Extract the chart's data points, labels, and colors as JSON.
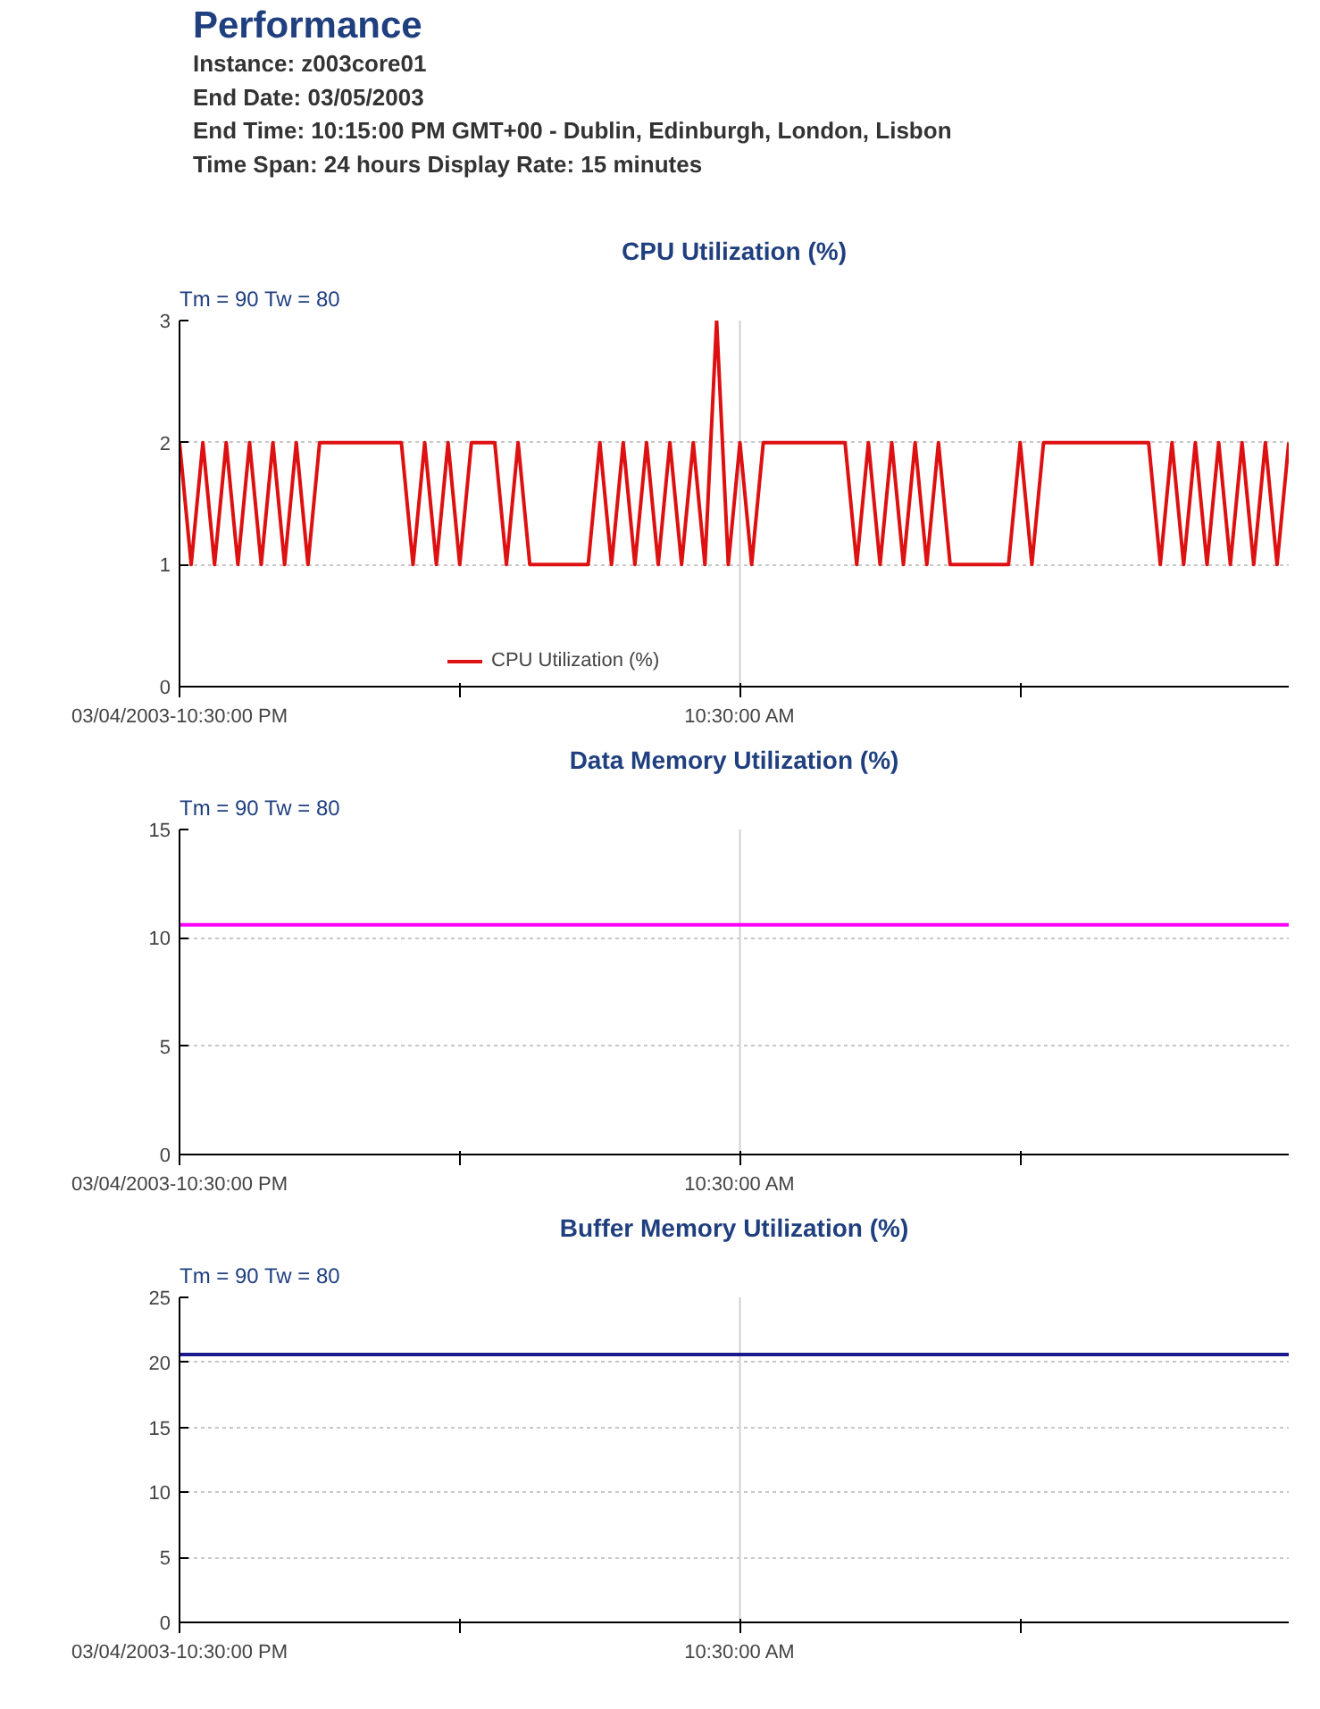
{
  "chart_data": [
    {
      "type": "other",
      "title": "Performance",
      "annotations": [
        "Instance: z003core01",
        "End Date: 03/05/2003",
        "End Time: 10:15:00 PM GMT+00 - Dublin, Edinburgh, London, Lisbon",
        "Time Span: 24 hours  Display Rate: 15 minutes"
      ]
    },
    {
      "type": "line",
      "title": "CPU Utilization (%)",
      "annotations": [
        "Tm = 90  Tw = 80"
      ],
      "xlim": [
        "2003-03-04T22:30",
        "2003-03-05T22:15"
      ],
      "ylim": [
        0,
        3
      ],
      "yticks": [
        0,
        1,
        2,
        3
      ],
      "xticks": [
        {
          "value": "2003-03-04T22:30",
          "label": "03/04/2003-10:30:00 PM"
        },
        {
          "value": "2003-03-05T04:30",
          "label": null
        },
        {
          "value": "2003-03-05T10:30",
          "label": "10:30:00 AM"
        },
        {
          "value": "2003-03-05T16:30",
          "label": null
        }
      ],
      "grid": "y",
      "legend": "bottom",
      "ref_lines": [
        {
          "axis": "x",
          "value": "2003-03-05T10:30",
          "color": "#d0d0d0"
        }
      ],
      "series": [
        {
          "name": "CPU Utilization (%)",
          "color": "#dd1111",
          "x": [
            "2003-03-04T22:30",
            "2003-03-04T22:45",
            "2003-03-04T23:00",
            "2003-03-04T23:15",
            "2003-03-04T23:30",
            "2003-03-04T23:45",
            "2003-03-05T00:00",
            "2003-03-05T00:15",
            "2003-03-05T00:30",
            "2003-03-05T00:45",
            "2003-03-05T01:00",
            "2003-03-05T01:15",
            "2003-03-05T01:30",
            "2003-03-05T01:45",
            "2003-03-05T02:00",
            "2003-03-05T02:15",
            "2003-03-05T02:30",
            "2003-03-05T02:45",
            "2003-03-05T03:00",
            "2003-03-05T03:15",
            "2003-03-05T03:30",
            "2003-03-05T03:45",
            "2003-03-05T04:00",
            "2003-03-05T04:15",
            "2003-03-05T04:30",
            "2003-03-05T04:45",
            "2003-03-05T05:00",
            "2003-03-05T05:15",
            "2003-03-05T05:30",
            "2003-03-05T05:45",
            "2003-03-05T06:00",
            "2003-03-05T06:15",
            "2003-03-05T06:30",
            "2003-03-05T06:45",
            "2003-03-05T07:00",
            "2003-03-05T07:15",
            "2003-03-05T07:30",
            "2003-03-05T07:45",
            "2003-03-05T08:00",
            "2003-03-05T08:15",
            "2003-03-05T08:30",
            "2003-03-05T08:45",
            "2003-03-05T09:00",
            "2003-03-05T09:15",
            "2003-03-05T09:30",
            "2003-03-05T09:45",
            "2003-03-05T10:00",
            "2003-03-05T10:15",
            "2003-03-05T10:30",
            "2003-03-05T10:45",
            "2003-03-05T11:00",
            "2003-03-05T11:15",
            "2003-03-05T11:30",
            "2003-03-05T11:45",
            "2003-03-05T12:00",
            "2003-03-05T12:15",
            "2003-03-05T12:30",
            "2003-03-05T12:45",
            "2003-03-05T13:00",
            "2003-03-05T13:15",
            "2003-03-05T13:30",
            "2003-03-05T13:45",
            "2003-03-05T14:00",
            "2003-03-05T14:15",
            "2003-03-05T14:30",
            "2003-03-05T14:45",
            "2003-03-05T15:00",
            "2003-03-05T15:15",
            "2003-03-05T15:30",
            "2003-03-05T15:45",
            "2003-03-05T16:00",
            "2003-03-05T16:15",
            "2003-03-05T16:30",
            "2003-03-05T16:45",
            "2003-03-05T17:00",
            "2003-03-05T17:15",
            "2003-03-05T17:30",
            "2003-03-05T17:45",
            "2003-03-05T18:00",
            "2003-03-05T18:15",
            "2003-03-05T18:30",
            "2003-03-05T18:45",
            "2003-03-05T19:00",
            "2003-03-05T19:15",
            "2003-03-05T19:30",
            "2003-03-05T19:45",
            "2003-03-05T20:00",
            "2003-03-05T20:15",
            "2003-03-05T20:30",
            "2003-03-05T20:45",
            "2003-03-05T21:00",
            "2003-03-05T21:15",
            "2003-03-05T21:30",
            "2003-03-05T21:45",
            "2003-03-05T22:00",
            "2003-03-05T22:15"
          ],
          "values": [
            2,
            1,
            2,
            1,
            2,
            1,
            2,
            1,
            2,
            1,
            2,
            1,
            2,
            2,
            2,
            2,
            2,
            2,
            2,
            2,
            1,
            2,
            1,
            2,
            1,
            2,
            2,
            2,
            1,
            2,
            1,
            1,
            1,
            1,
            1,
            1,
            2,
            1,
            2,
            1,
            2,
            1,
            2,
            1,
            2,
            1,
            3,
            1,
            2,
            1,
            2,
            2,
            2,
            2,
            2,
            2,
            2,
            2,
            1,
            2,
            1,
            2,
            1,
            2,
            1,
            2,
            1,
            1,
            1,
            1,
            1,
            1,
            2,
            1,
            2,
            2,
            2,
            2,
            2,
            2,
            2,
            2,
            2,
            2,
            1,
            2,
            1,
            2,
            1,
            2,
            1,
            2,
            1,
            2,
            1,
            2
          ]
        }
      ]
    },
    {
      "type": "line",
      "title": "Data Memory Utilization (%)",
      "annotations": [
        "Tm = 90  Tw = 80"
      ],
      "xlim": [
        "2003-03-04T22:30",
        "2003-03-05T22:15"
      ],
      "ylim": [
        0,
        15
      ],
      "yticks": [
        0,
        5,
        10,
        15
      ],
      "xticks": [
        {
          "value": "2003-03-04T22:30",
          "label": "03/04/2003-10:30:00 PM"
        },
        {
          "value": "2003-03-05T04:30",
          "label": null
        },
        {
          "value": "2003-03-05T10:30",
          "label": "10:30:00 AM"
        },
        {
          "value": "2003-03-05T16:30",
          "label": null
        }
      ],
      "grid": "y",
      "ref_lines": [
        {
          "axis": "x",
          "value": "2003-03-05T10:30",
          "color": "#d0d0d0"
        }
      ],
      "series": [
        {
          "color": "#ff00ff",
          "x": [
            "2003-03-04T22:30",
            "2003-03-05T22:15"
          ],
          "values": [
            10.6,
            10.6
          ]
        }
      ]
    },
    {
      "type": "line",
      "title": "Buffer Memory Utilization (%)",
      "annotations": [
        "Tm = 90  Tw = 80"
      ],
      "xlim": [
        "2003-03-04T22:30",
        "2003-03-05T22:15"
      ],
      "ylim": [
        0,
        25
      ],
      "yticks": [
        0,
        5,
        10,
        15,
        20,
        25
      ],
      "xticks": [
        {
          "value": "2003-03-04T22:30",
          "label": "03/04/2003-10:30:00 PM"
        },
        {
          "value": "2003-03-05T04:30",
          "label": null
        },
        {
          "value": "2003-03-05T10:30",
          "label": "10:30:00 AM"
        },
        {
          "value": "2003-03-05T16:30",
          "label": null
        }
      ],
      "grid": "y",
      "ref_lines": [
        {
          "axis": "x",
          "value": "2003-03-05T10:30",
          "color": "#d0d0d0"
        }
      ],
      "series": [
        {
          "color": "#1a1a8c",
          "x": [
            "2003-03-04T22:30",
            "2003-03-05T22:15"
          ],
          "values": [
            20.6,
            20.6
          ]
        }
      ]
    }
  ]
}
